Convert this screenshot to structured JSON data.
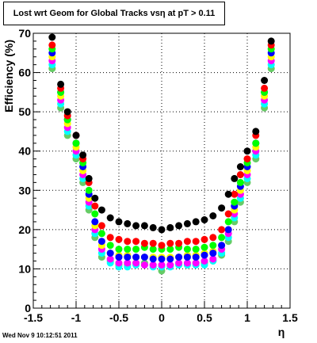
{
  "chart_data": {
    "type": "scatter",
    "title": "Lost wrt Geom for Global Tracks vsη at pT > 0.11",
    "xlabel": "η",
    "ylabel": "Efficiency (%)",
    "xlim": [
      -1.5,
      1.5
    ],
    "ylim": [
      0,
      70
    ],
    "xticks": [
      "-1.5",
      "-1",
      "-0.5",
      "0",
      "0.5",
      "1",
      "1.5"
    ],
    "yticks": [
      "0",
      "10",
      "20",
      "30",
      "40",
      "50",
      "60",
      "70"
    ],
    "grid": true,
    "series": [
      {
        "color": "#000000",
        "x": [
          -1.28,
          -1.18,
          -1.1,
          -1.0,
          -0.92,
          -0.85,
          -0.78,
          -0.7,
          -0.6,
          -0.5,
          -0.4,
          -0.3,
          -0.2,
          -0.1,
          0.0,
          0.1,
          0.2,
          0.3,
          0.4,
          0.5,
          0.6,
          0.7,
          0.78,
          0.85,
          0.92,
          1.0,
          1.1,
          1.2,
          1.28
        ],
        "y": [
          69,
          57,
          50,
          44,
          39,
          33,
          28,
          25,
          23,
          22,
          21.5,
          21,
          21,
          20.5,
          20,
          20.5,
          21,
          21.5,
          22,
          22.5,
          23.5,
          25.5,
          29,
          33,
          36,
          40,
          45,
          58,
          68
        ]
      },
      {
        "color": "#ff0000",
        "x": [
          -1.28,
          -1.18,
          -1.1,
          -1.0,
          -0.92,
          -0.85,
          -0.78,
          -0.7,
          -0.6,
          -0.5,
          -0.4,
          -0.3,
          -0.2,
          -0.1,
          0.0,
          0.1,
          0.2,
          0.3,
          0.4,
          0.5,
          0.6,
          0.7,
          0.78,
          0.85,
          0.92,
          1.0,
          1.1,
          1.2,
          1.28
        ],
        "y": [
          67,
          56,
          49,
          44,
          38,
          32,
          26,
          21,
          18,
          17.5,
          17,
          17,
          16.5,
          16.5,
          16,
          16.5,
          16.5,
          17,
          17,
          17.5,
          18,
          20,
          24,
          29,
          34,
          38,
          44,
          56,
          67
        ]
      },
      {
        "color": "#00ff00",
        "x": [
          -1.28,
          -1.18,
          -1.1,
          -1.0,
          -0.92,
          -0.85,
          -0.78,
          -0.7,
          -0.6,
          -0.5,
          -0.4,
          -0.3,
          -0.2,
          -0.1,
          0.0,
          0.1,
          0.2,
          0.3,
          0.4,
          0.5,
          0.6,
          0.7,
          0.78,
          0.85,
          0.92,
          1.0,
          1.1,
          1.2,
          1.28
        ],
        "y": [
          66,
          55,
          48,
          42,
          37,
          30,
          24,
          19,
          16,
          15,
          15,
          15,
          15.5,
          15,
          15,
          15,
          15.5,
          15,
          15,
          15.5,
          16,
          18,
          22,
          27,
          32,
          37,
          42,
          55,
          66
        ]
      },
      {
        "color": "#0000ff",
        "x": [
          -1.28,
          -1.18,
          -1.1,
          -1.0,
          -0.92,
          -0.85,
          -0.78,
          -0.7,
          -0.6,
          -0.5,
          -0.4,
          -0.3,
          -0.2,
          -0.1,
          0.0,
          0.1,
          0.2,
          0.3,
          0.4,
          0.5,
          0.6,
          0.7,
          0.78,
          0.85,
          0.92,
          1.0,
          1.1,
          1.2,
          1.28
        ],
        "y": [
          65,
          55,
          48,
          42,
          36,
          29,
          22,
          17,
          14,
          13,
          13,
          13,
          13,
          12.5,
          12.5,
          12.5,
          13,
          13,
          13,
          13.5,
          14,
          16,
          20,
          26,
          31,
          36,
          42,
          55,
          65
        ]
      },
      {
        "color": "#ffff00",
        "x": [
          -1.28,
          -1.18,
          -1.1,
          -1.0,
          -0.92,
          -0.85,
          -0.78,
          -0.7,
          -0.6,
          -0.5,
          -0.4,
          -0.3,
          -0.2,
          -0.1,
          0.0,
          0.1,
          0.2,
          0.3,
          0.4,
          0.5,
          0.6,
          0.7,
          0.78,
          0.85,
          0.92,
          1.0,
          1.1,
          1.2,
          1.28
        ],
        "y": [
          64,
          54,
          47,
          41,
          35,
          28,
          21,
          16,
          14,
          13.5,
          13.5,
          13,
          13,
          13,
          13,
          13,
          13,
          13.5,
          13.5,
          14,
          14.5,
          16,
          20,
          25,
          30,
          35,
          41,
          54,
          64
        ]
      },
      {
        "color": "#ff00ff",
        "x": [
          -1.28,
          -1.18,
          -1.1,
          -1.0,
          -0.92,
          -0.85,
          -0.78,
          -0.7,
          -0.6,
          -0.5,
          -0.4,
          -0.3,
          -0.2,
          -0.1,
          0.0,
          0.1,
          0.2,
          0.3,
          0.4,
          0.5,
          0.6,
          0.7,
          0.78,
          0.85,
          0.92,
          1.0,
          1.1,
          1.2,
          1.28
        ],
        "y": [
          63,
          53,
          46,
          40,
          34,
          27,
          20,
          15,
          12.5,
          11.5,
          11.5,
          11.5,
          11,
          11,
          11,
          11,
          11.5,
          11.5,
          11.5,
          12,
          12.5,
          15,
          19,
          24,
          29,
          34,
          40,
          53,
          63
        ]
      },
      {
        "color": "#00ffff",
        "x": [
          -1.28,
          -1.18,
          -1.1,
          -1.0,
          -0.92,
          -0.85,
          -0.78,
          -0.7,
          -0.6,
          -0.5,
          -0.4,
          -0.3,
          -0.2,
          -0.1,
          0.0,
          0.1,
          0.2,
          0.3,
          0.4,
          0.5,
          0.6,
          0.7,
          0.78,
          0.85,
          0.92,
          1.0,
          1.1,
          1.2,
          1.28
        ],
        "y": [
          62,
          52,
          45,
          39,
          33,
          26,
          19,
          14,
          11.5,
          10.5,
          10.5,
          11,
          11,
          10.5,
          10.5,
          10.5,
          11,
          11,
          11,
          11,
          12,
          14,
          18,
          23,
          28,
          33,
          39,
          52,
          62
        ]
      },
      {
        "color": "#66cc66",
        "x": [
          -1.28,
          -1.18,
          -1.1,
          -1.0,
          -0.92,
          -0.85,
          -0.78,
          -0.7,
          -0.6,
          -0.5,
          -0.4,
          -0.3,
          -0.2,
          -0.1,
          0.0,
          0.1,
          0.2,
          0.3,
          0.4,
          0.5,
          0.6,
          0.7,
          0.78,
          0.85,
          0.92,
          1.0,
          1.1,
          1.2,
          1.28
        ],
        "y": [
          61,
          51,
          44,
          38,
          32,
          25,
          18,
          13,
          12,
          11,
          11,
          11.5,
          11.5,
          11,
          9.5,
          11,
          11,
          11,
          11.5,
          11.5,
          12,
          13.5,
          17,
          22,
          27,
          32,
          38,
          51,
          61
        ]
      }
    ]
  },
  "footer": {
    "timestamp": "Wed Nov  9 10:12:51 2011"
  }
}
